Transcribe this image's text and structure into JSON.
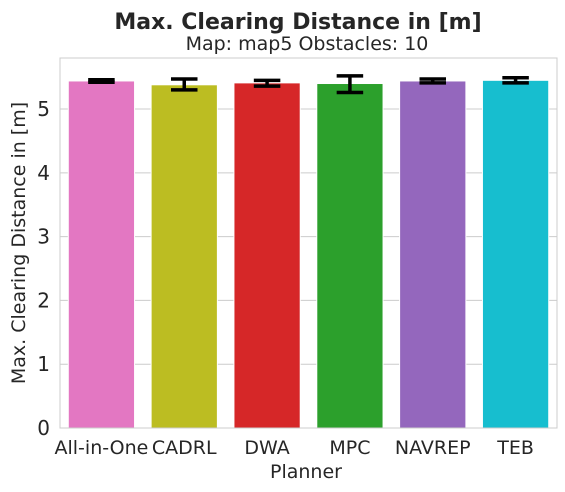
{
  "chart_data": {
    "type": "bar",
    "title": "Max. Clearing Distance in [m]",
    "subtitle": "Map: map5 Obstacles: 10",
    "xlabel": "Planner",
    "ylabel": "Max. Clearing Distance in [m]",
    "ylim": [
      0,
      5.8
    ],
    "yticks": [
      0,
      1,
      2,
      3,
      4,
      5
    ],
    "grid": "y",
    "categories": [
      "All-in-One",
      "CADRL",
      "DWA",
      "MPC",
      "NAVREP",
      "TEB"
    ],
    "values": [
      5.44,
      5.38,
      5.41,
      5.4,
      5.44,
      5.45
    ],
    "error_low": [
      5.42,
      5.3,
      5.36,
      5.26,
      5.41,
      5.41
    ],
    "error_high": [
      5.46,
      5.47,
      5.45,
      5.52,
      5.47,
      5.49
    ],
    "colors": [
      "#e377c2",
      "#bcbd22",
      "#d62728",
      "#2ca02c",
      "#9467bd",
      "#17becf"
    ]
  }
}
